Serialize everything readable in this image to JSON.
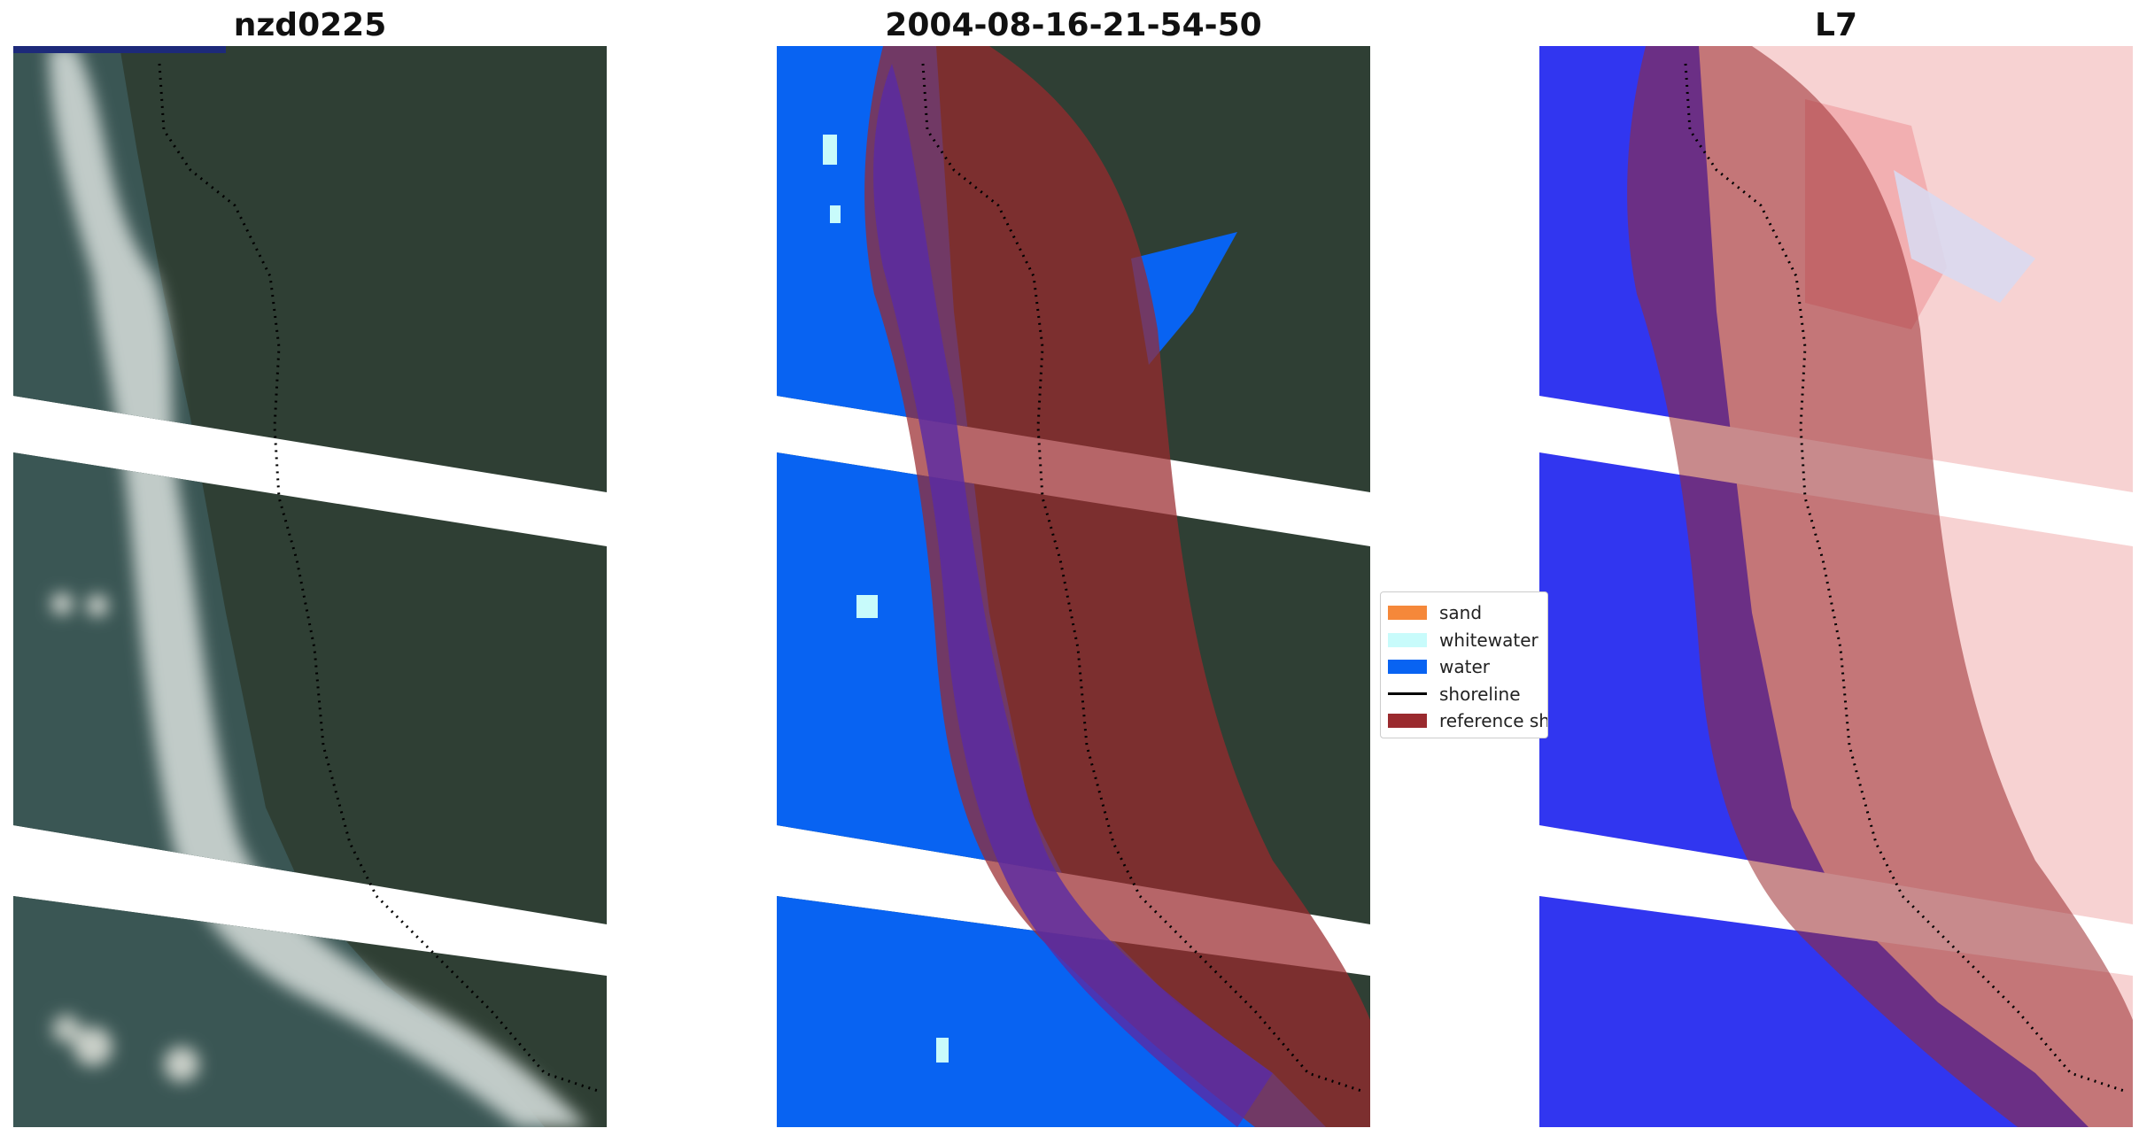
{
  "panels": [
    {
      "title": "nzd0225",
      "mode": "rgb"
    },
    {
      "title": "2004-08-16-21-54-50",
      "mode": "classified"
    },
    {
      "title": "L7",
      "mode": "index"
    }
  ],
  "legend": {
    "items": [
      {
        "label": "sand",
        "color": "#f5883a",
        "kind": "patch"
      },
      {
        "label": "whitewater",
        "color": "#c8fbfb",
        "kind": "patch"
      },
      {
        "label": "water",
        "color": "#0863f2",
        "kind": "patch"
      },
      {
        "label": "shoreline",
        "color": "#000000",
        "kind": "line"
      },
      {
        "label": "reference shoreline buffer",
        "color": "#9a2a2e",
        "kind": "patch"
      }
    ]
  },
  "colors": {
    "land": "#2f3f34",
    "surf": "#c8d2cf",
    "ocean_rgb": "#38535a",
    "water_class": "#0863f2",
    "whitewater_class": "#c8fbfb",
    "buffer": "#9a2a2e",
    "index_water": "#3136f0",
    "index_land": "#f7d2d2"
  }
}
